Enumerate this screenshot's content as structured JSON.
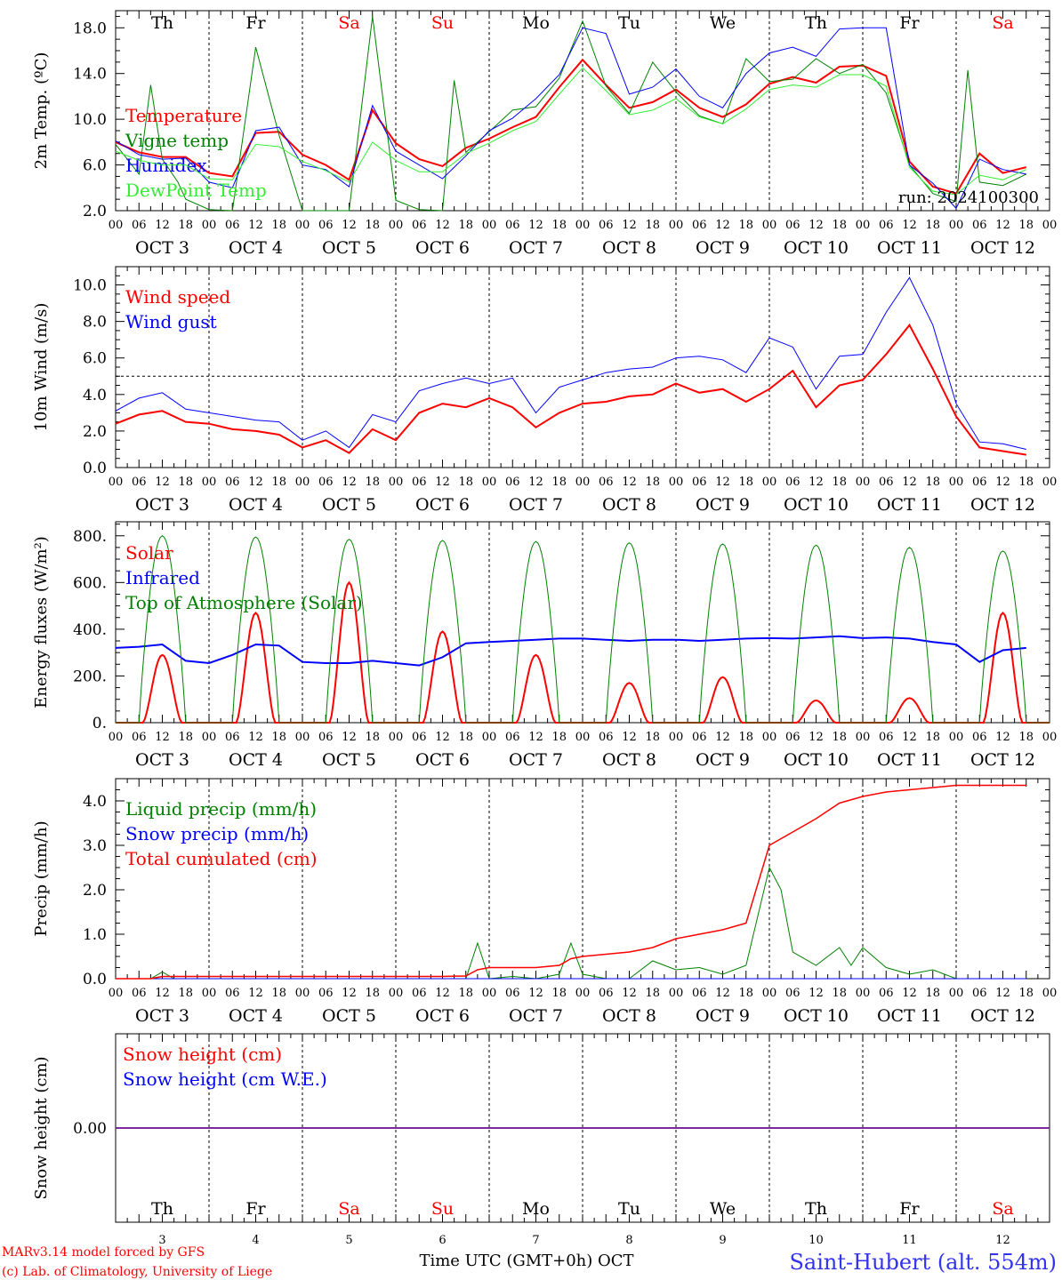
{
  "days": [
    "Th",
    "Fr",
    "Sa",
    "Su",
    "Mo",
    "Tu",
    "We",
    "Th",
    "Fr",
    "Sa"
  ],
  "weekend_days": [
    2,
    3,
    9
  ],
  "date_labels": [
    "OCT  3",
    "OCT  4",
    "OCT  5",
    "OCT  6",
    "OCT  7",
    "OCT  8",
    "OCT  9",
    "OCT 10",
    "OCT 11",
    "OCT 12"
  ],
  "bottom_day_numbers": [
    "3",
    "4",
    "5",
    "6",
    "7",
    "8",
    "9",
    "10",
    "11",
    "12"
  ],
  "hour_labels": [
    "00",
    "06",
    "12",
    "18"
  ],
  "end_hour_label": "00",
  "run_label": "run: 2024100300",
  "footer": {
    "model_line": "MARv3.14 model forced by GFS",
    "copyright_line": "(c) Lab. of Climatology, University of Liege",
    "time_label": "Time UTC (GMT+0h) OCT",
    "station": "Saint-Hubert (alt. 554m)"
  },
  "colors": {
    "red": "#ff0000",
    "darkgreen": "#008000",
    "blue": "#0000ff",
    "lightgreen": "#33ee33",
    "purple": "#7a2a9a",
    "station": "#3333ee"
  },
  "chart_data": [
    {
      "type": "line",
      "ylabel": "2m Temp. (ºC)",
      "ylim": [
        2.0,
        19.5
      ],
      "yticks": [
        2.0,
        6.0,
        10.0,
        14.0,
        18.0
      ],
      "ytick_labels": [
        "2.0",
        "6.0",
        "10.0",
        "14.0",
        "18.0"
      ],
      "x_unit": "hours since OCT 3 00 UTC",
      "series": [
        {
          "name": "Temperature",
          "color": "#ff0000",
          "width": 2,
          "x": [
            0,
            6,
            12,
            18,
            24,
            30,
            36,
            42,
            48,
            54,
            60,
            66,
            72,
            78,
            84,
            90,
            96,
            102,
            108,
            114,
            120,
            126,
            132,
            138,
            144,
            150,
            156,
            162,
            168,
            174,
            180,
            186,
            192,
            198,
            204,
            210,
            216,
            222,
            228,
            234
          ],
          "y": [
            8.0,
            7.1,
            6.7,
            6.7,
            5.3,
            5.0,
            8.8,
            8.9,
            6.9,
            6.0,
            4.7,
            10.8,
            7.9,
            6.5,
            5.9,
            7.5,
            8.3,
            9.3,
            10.2,
            12.8,
            15.2,
            13.0,
            11.0,
            11.5,
            12.6,
            11.0,
            10.2,
            11.3,
            13.1,
            13.7,
            13.2,
            14.6,
            14.7,
            13.8,
            6.3,
            4.1,
            3.5,
            7.0,
            5.3,
            5.8
          ]
        },
        {
          "name": "Vigne temp",
          "color": "#008000",
          "width": 1,
          "x": [
            0,
            6,
            9,
            12,
            16,
            18,
            24,
            30,
            36,
            42,
            48,
            54,
            60,
            66,
            72,
            78,
            84,
            87,
            90,
            96,
            102,
            108,
            114,
            120,
            126,
            132,
            138,
            144,
            150,
            156,
            162,
            168,
            174,
            180,
            186,
            192,
            198,
            204,
            210,
            216,
            219,
            222,
            228,
            234
          ],
          "y": [
            7.8,
            5.2,
            13.0,
            6.5,
            4.5,
            3.0,
            2.1,
            2.0,
            16.3,
            8.6,
            2.0,
            1.2,
            1.7,
            19.0,
            2.9,
            2.1,
            2.0,
            13.4,
            7.1,
            8.9,
            10.8,
            11.1,
            13.6,
            18.6,
            12.9,
            10.5,
            15.0,
            12.4,
            10.3,
            9.6,
            15.3,
            13.3,
            13.5,
            15.3,
            14.0,
            14.8,
            12.3,
            6.0,
            3.5,
            2.8,
            14.3,
            4.5,
            4.2,
            5.2
          ]
        },
        {
          "name": "Humidex",
          "color": "#0000ff",
          "width": 1,
          "x": [
            0,
            6,
            12,
            18,
            24,
            30,
            36,
            42,
            48,
            54,
            60,
            66,
            72,
            78,
            84,
            90,
            96,
            102,
            108,
            114,
            120,
            126,
            132,
            138,
            144,
            150,
            156,
            162,
            168,
            174,
            180,
            186,
            192,
            198,
            204,
            210,
            216,
            222,
            228,
            234
          ],
          "y": [
            8.1,
            6.9,
            6.5,
            6.6,
            4.5,
            4.0,
            9.0,
            9.3,
            6.0,
            5.6,
            4.1,
            11.2,
            7.2,
            6.0,
            4.8,
            6.8,
            9.0,
            10.1,
            11.8,
            13.9,
            18.0,
            17.5,
            12.2,
            12.8,
            14.4,
            12.0,
            11.0,
            14.0,
            15.8,
            16.3,
            15.5,
            17.9,
            18.0,
            18.0,
            6.0,
            4.4,
            2.2,
            6.5,
            5.6,
            5.2
          ]
        },
        {
          "name": "DewPoint Temp",
          "color": "#33ee33",
          "width": 1,
          "x": [
            0,
            6,
            12,
            18,
            24,
            30,
            36,
            42,
            48,
            54,
            60,
            66,
            72,
            78,
            84,
            90,
            96,
            102,
            108,
            114,
            120,
            126,
            132,
            138,
            144,
            150,
            156,
            162,
            168,
            174,
            180,
            186,
            192,
            198,
            204,
            210,
            216,
            222,
            228,
            234
          ],
          "y": [
            7.2,
            6.4,
            6.0,
            6.0,
            4.8,
            4.7,
            7.8,
            7.6,
            6.3,
            5.5,
            4.5,
            8.0,
            6.4,
            5.4,
            5.4,
            7.0,
            7.9,
            9.0,
            9.8,
            12.2,
            14.5,
            12.5,
            10.4,
            10.8,
            11.8,
            10.2,
            9.6,
            10.9,
            12.6,
            13.0,
            12.8,
            13.9,
            13.9,
            12.9,
            5.8,
            3.7,
            3.4,
            5.1,
            4.7,
            5.6
          ]
        }
      ]
    },
    {
      "type": "line",
      "ylabel": "10m Wind (m/s)",
      "ylim": [
        0.0,
        11.0
      ],
      "yticks": [
        0.0,
        2.0,
        4.0,
        6.0,
        8.0,
        10.0
      ],
      "ytick_labels": [
        "0.0",
        "2.0",
        "4.0",
        "6.0",
        "8.0",
        "10.0"
      ],
      "reference_line": 5.0,
      "series": [
        {
          "name": "Wind speed",
          "color": "#ff0000",
          "width": 2,
          "x": [
            0,
            6,
            12,
            18,
            24,
            30,
            36,
            42,
            48,
            54,
            60,
            66,
            72,
            78,
            84,
            90,
            96,
            102,
            108,
            114,
            120,
            126,
            132,
            138,
            144,
            150,
            156,
            162,
            168,
            174,
            180,
            186,
            192,
            198,
            204,
            210,
            216,
            222,
            228,
            234
          ],
          "y": [
            2.4,
            2.9,
            3.1,
            2.5,
            2.4,
            2.1,
            2.0,
            1.8,
            1.1,
            1.5,
            0.8,
            2.1,
            1.5,
            3.0,
            3.5,
            3.3,
            3.8,
            3.3,
            2.2,
            3.0,
            3.5,
            3.6,
            3.9,
            4.0,
            4.6,
            4.1,
            4.3,
            3.6,
            4.3,
            5.3,
            3.3,
            4.5,
            4.8,
            6.2,
            7.8,
            5.4,
            2.8,
            1.1,
            0.9,
            0.7
          ]
        },
        {
          "name": "Wind gust",
          "color": "#0000ff",
          "width": 1,
          "x": [
            0,
            6,
            12,
            18,
            24,
            30,
            36,
            42,
            48,
            54,
            60,
            66,
            72,
            78,
            84,
            90,
            96,
            102,
            108,
            114,
            120,
            126,
            132,
            138,
            144,
            150,
            156,
            162,
            168,
            174,
            180,
            186,
            192,
            198,
            204,
            210,
            216,
            222,
            228,
            234
          ],
          "y": [
            3.1,
            3.8,
            4.1,
            3.2,
            3.0,
            2.8,
            2.6,
            2.5,
            1.5,
            2.0,
            1.1,
            2.9,
            2.5,
            4.2,
            4.6,
            4.9,
            4.6,
            4.9,
            3.0,
            4.4,
            4.8,
            5.2,
            5.4,
            5.5,
            6.0,
            6.1,
            5.9,
            5.2,
            7.1,
            6.6,
            4.3,
            6.1,
            6.2,
            8.5,
            10.4,
            7.8,
            3.5,
            1.4,
            1.3,
            1.0
          ]
        }
      ]
    },
    {
      "type": "line",
      "ylabel": "Energy fluxes (W/m²)",
      "ylim": [
        0,
        860
      ],
      "yticks": [
        0,
        200,
        400,
        600,
        800
      ],
      "ytick_labels": [
        "0.",
        "200.",
        "400.",
        "600.",
        "800."
      ],
      "series": [
        {
          "name": "Solar",
          "color": "#ff0000",
          "width": 2,
          "day_peaks": [
            290,
            470,
            600,
            390,
            290,
            170,
            195,
            95,
            105,
            470
          ]
        },
        {
          "name": "Infrared",
          "color": "#0000ff",
          "width": 2,
          "x": [
            0,
            6,
            12,
            18,
            24,
            30,
            36,
            42,
            48,
            54,
            60,
            66,
            72,
            78,
            84,
            90,
            96,
            102,
            108,
            114,
            120,
            126,
            132,
            138,
            144,
            150,
            156,
            162,
            168,
            174,
            180,
            186,
            192,
            198,
            204,
            210,
            216,
            222,
            228,
            234
          ],
          "y": [
            320,
            325,
            335,
            265,
            255,
            290,
            335,
            330,
            260,
            255,
            255,
            265,
            255,
            245,
            280,
            340,
            345,
            350,
            355,
            360,
            360,
            355,
            350,
            355,
            355,
            350,
            355,
            360,
            362,
            360,
            365,
            370,
            362,
            365,
            360,
            345,
            335,
            260,
            310,
            320
          ]
        },
        {
          "name": "Top of Atmosphere (Solar)",
          "color": "#008000",
          "width": 1,
          "day_peaks": [
            800,
            795,
            785,
            780,
            775,
            770,
            765,
            760,
            750,
            735
          ]
        }
      ]
    },
    {
      "type": "line",
      "ylabel": "Precip (mm/h)",
      "ylim": [
        0.0,
        4.5
      ],
      "yticks": [
        0.0,
        1.0,
        2.0,
        3.0,
        4.0
      ],
      "ytick_labels": [
        "0.0",
        "1.0",
        "2.0",
        "3.0",
        "4.0"
      ],
      "series": [
        {
          "name": "Liquid precip (mm/h)",
          "color": "#008000",
          "width": 1,
          "x": [
            0,
            9,
            12,
            15,
            18,
            24,
            60,
            72,
            84,
            90,
            93,
            96,
            102,
            108,
            114,
            117,
            120,
            126,
            132,
            138,
            144,
            150,
            156,
            162,
            168,
            171,
            174,
            180,
            186,
            189,
            192,
            198,
            204,
            210,
            216,
            222,
            228,
            234
          ],
          "y": [
            0,
            0,
            0.15,
            0,
            0,
            0,
            0,
            0,
            0,
            0,
            0.8,
            0,
            0.05,
            0,
            0.1,
            0.8,
            0.1,
            0,
            0,
            0.4,
            0.2,
            0.25,
            0.1,
            0.3,
            2.5,
            2.0,
            0.6,
            0.3,
            0.7,
            0.3,
            0.7,
            0.25,
            0.1,
            0.2,
            0,
            0,
            0,
            0
          ]
        },
        {
          "name": "Snow precip (mm/h)",
          "color": "#0000ff",
          "width": 1,
          "x": [
            0,
            234
          ],
          "y": [
            0,
            0
          ]
        },
        {
          "name": "Total cumulated (cm)",
          "color": "#ff0000",
          "width": 1.5,
          "x": [
            0,
            9,
            12,
            60,
            84,
            90,
            93,
            96,
            102,
            108,
            114,
            117,
            120,
            126,
            132,
            138,
            144,
            150,
            156,
            162,
            168,
            174,
            180,
            186,
            192,
            198,
            204,
            210,
            216,
            222,
            228,
            234
          ],
          "y": [
            0,
            0,
            0.05,
            0.05,
            0.05,
            0.06,
            0.2,
            0.25,
            0.25,
            0.25,
            0.3,
            0.45,
            0.5,
            0.55,
            0.6,
            0.7,
            0.9,
            1.0,
            1.1,
            1.25,
            3.0,
            3.3,
            3.6,
            3.95,
            4.1,
            4.2,
            4.25,
            4.3,
            4.35,
            4.35,
            4.35,
            4.35
          ]
        }
      ]
    },
    {
      "type": "line",
      "ylabel": "Snow height (cm)",
      "ylim": [
        -1,
        1
      ],
      "yticks": [
        0.0
      ],
      "ytick_labels": [
        "0.00"
      ],
      "series": [
        {
          "name": "Snow height (cm)",
          "color": "#ff0000",
          "width": 1,
          "x": [
            0,
            234
          ],
          "y": [
            0,
            0
          ]
        },
        {
          "name": "Snow height (cm W.E.)",
          "color": "#0000ff",
          "width": 1,
          "x": [
            0,
            234
          ],
          "y": [
            0,
            0
          ]
        }
      ]
    }
  ]
}
